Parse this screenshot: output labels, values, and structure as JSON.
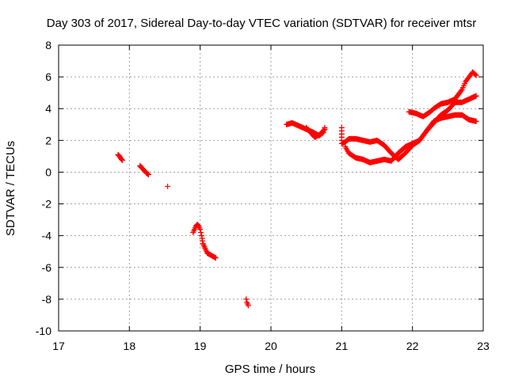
{
  "chart_data": {
    "type": "scatter",
    "title": "Day 303 of 2017, Sidereal Day-to-day VTEC variation (SDTVAR) for receiver mtsr",
    "xlabel": "GPS time / hours",
    "ylabel": "SDTVAR / TECUs",
    "xlim": [
      17,
      23
    ],
    "ylim": [
      -10,
      8
    ],
    "xticks": [
      "17",
      "18",
      "19",
      "20",
      "21",
      "22",
      "23"
    ],
    "yticks": [
      "-10",
      "-8",
      "-6",
      "-4",
      "-2",
      "0",
      "2",
      "4",
      "6",
      "8"
    ],
    "grid": true,
    "marker": "+",
    "color": "#ff0000",
    "series": [
      {
        "name": "mtsr",
        "segments": [
          [
            [
              17.84,
              1.1
            ],
            [
              17.86,
              1.0
            ],
            [
              17.88,
              0.85
            ],
            [
              17.9,
              0.75
            ]
          ],
          [
            [
              18.15,
              0.4
            ],
            [
              18.18,
              0.25
            ],
            [
              18.21,
              0.1
            ],
            [
              18.24,
              -0.05
            ],
            [
              18.27,
              -0.15
            ]
          ],
          [
            [
              18.54,
              -0.9
            ]
          ],
          [
            [
              18.9,
              -3.8
            ],
            [
              18.92,
              -3.6
            ],
            [
              18.94,
              -3.4
            ],
            [
              18.96,
              -3.3
            ],
            [
              18.98,
              -3.4
            ],
            [
              19.0,
              -3.6
            ],
            [
              19.02,
              -4.0
            ],
            [
              19.04,
              -4.5
            ],
            [
              19.07,
              -4.8
            ],
            [
              19.1,
              -5.1
            ],
            [
              19.14,
              -5.2
            ],
            [
              19.18,
              -5.3
            ],
            [
              19.22,
              -5.4
            ]
          ],
          [
            [
              19.65,
              -8.0
            ],
            [
              19.66,
              -8.2
            ],
            [
              19.68,
              -8.4
            ]
          ],
          [
            [
              20.22,
              3.0
            ],
            [
              20.3,
              3.1
            ],
            [
              20.4,
              2.9
            ],
            [
              20.5,
              2.7
            ],
            [
              20.6,
              2.5
            ],
            [
              20.68,
              2.3
            ],
            [
              20.74,
              2.5
            ],
            [
              20.76,
              2.8
            ]
          ],
          [
            [
              20.5,
              2.8
            ],
            [
              20.56,
              2.5
            ],
            [
              20.62,
              2.2
            ],
            [
              20.7,
              2.4
            ],
            [
              20.76,
              2.7
            ]
          ],
          [
            [
              21.0,
              2.8
            ],
            [
              21.0,
              2.2
            ],
            [
              21.0,
              1.8
            ],
            [
              21.05,
              1.9
            ],
            [
              21.1,
              2.1
            ],
            [
              21.2,
              2.1
            ],
            [
              21.3,
              2.0
            ],
            [
              21.4,
              1.9
            ],
            [
              21.5,
              2.0
            ],
            [
              21.6,
              1.7
            ],
            [
              21.7,
              1.2
            ],
            [
              21.8,
              0.8
            ],
            [
              21.9,
              1.2
            ],
            [
              22.0,
              1.7
            ],
            [
              22.1,
              2.0
            ],
            [
              22.2,
              2.6
            ],
            [
              22.3,
              3.2
            ],
            [
              22.4,
              3.4
            ],
            [
              22.5,
              3.5
            ],
            [
              22.6,
              3.6
            ],
            [
              22.7,
              3.6
            ],
            [
              22.8,
              3.3
            ],
            [
              22.9,
              3.2
            ]
          ],
          [
            [
              21.05,
              1.6
            ],
            [
              21.1,
              1.2
            ],
            [
              21.2,
              0.9
            ],
            [
              21.3,
              0.8
            ],
            [
              21.4,
              0.6
            ],
            [
              21.5,
              0.7
            ],
            [
              21.6,
              0.8
            ],
            [
              21.7,
              0.7
            ],
            [
              21.8,
              1.2
            ],
            [
              21.9,
              1.6
            ],
            [
              22.0,
              1.8
            ],
            [
              22.1,
              2.0
            ],
            [
              22.2,
              2.6
            ],
            [
              22.3,
              3.1
            ],
            [
              22.4,
              3.6
            ],
            [
              22.5,
              3.9
            ],
            [
              22.6,
              4.4
            ],
            [
              22.7,
              4.4
            ],
            [
              22.8,
              4.6
            ],
            [
              22.9,
              4.8
            ]
          ],
          [
            [
              21.95,
              3.8
            ],
            [
              22.05,
              3.7
            ],
            [
              22.15,
              3.5
            ],
            [
              22.25,
              3.8
            ],
            [
              22.3,
              4.0
            ],
            [
              22.4,
              4.3
            ],
            [
              22.5,
              4.4
            ],
            [
              22.6,
              4.6
            ],
            [
              22.7,
              5.2
            ],
            [
              22.75,
              5.7
            ],
            [
              22.8,
              6.0
            ],
            [
              22.85,
              6.3
            ],
            [
              22.9,
              6.1
            ]
          ]
        ]
      }
    ]
  }
}
